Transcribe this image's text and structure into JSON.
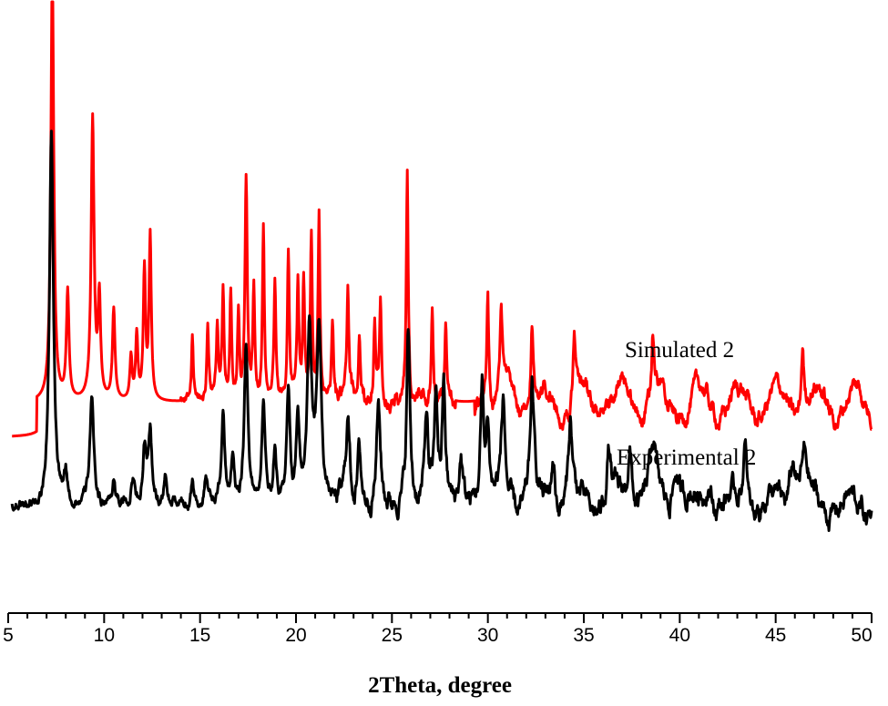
{
  "chart_data": {
    "type": "line",
    "title": "",
    "xlabel": "2Theta, degree",
    "ylabel": "",
    "xlim": [
      5,
      50
    ],
    "xticks": [
      "5",
      "10",
      "15",
      "20",
      "25",
      "30",
      "35",
      "40",
      "45",
      "50"
    ],
    "grid": false,
    "legend": "none",
    "series": [
      {
        "name": "Simulated 2",
        "color": "#ff0000",
        "baseline": 8,
        "peaks": [
          [
            7.3,
            100,
            0.09
          ],
          [
            8.1,
            25,
            0.08
          ],
          [
            9.4,
            65,
            0.09
          ],
          [
            9.75,
            23,
            0.08
          ],
          [
            10.5,
            21,
            0.08
          ],
          [
            11.4,
            10,
            0.07
          ],
          [
            11.7,
            15,
            0.07
          ],
          [
            12.1,
            30,
            0.07
          ],
          [
            12.4,
            38,
            0.07
          ],
          [
            14.6,
            14,
            0.05
          ],
          [
            15.4,
            19,
            0.06
          ],
          [
            15.9,
            18,
            0.06
          ],
          [
            16.2,
            24,
            0.06
          ],
          [
            16.6,
            26,
            0.06
          ],
          [
            17.0,
            22,
            0.06
          ],
          [
            17.4,
            52,
            0.07
          ],
          [
            17.8,
            25,
            0.06
          ],
          [
            18.3,
            40,
            0.06
          ],
          [
            18.9,
            26,
            0.06
          ],
          [
            19.6,
            35,
            0.06
          ],
          [
            20.1,
            26,
            0.06
          ],
          [
            20.4,
            28,
            0.06
          ],
          [
            20.8,
            38,
            0.06
          ],
          [
            21.2,
            42,
            0.06
          ],
          [
            21.9,
            18,
            0.06
          ],
          [
            22.7,
            24,
            0.06
          ],
          [
            23.3,
            16,
            0.06
          ],
          [
            24.1,
            20,
            0.06
          ],
          [
            24.4,
            23,
            0.06
          ],
          [
            25.8,
            55,
            0.06
          ],
          [
            27.1,
            22,
            0.06
          ],
          [
            27.8,
            21,
            0.06
          ],
          [
            30.0,
            24,
            0.07
          ],
          [
            30.7,
            18,
            0.07
          ],
          [
            32.3,
            19,
            0.07
          ],
          [
            34.5,
            15,
            0.07
          ],
          [
            38.6,
            16,
            0.08
          ],
          [
            46.4,
            15,
            0.08
          ]
        ]
      },
      {
        "name": "Experimental 2",
        "color": "#000000",
        "baseline": 5,
        "peaks": [
          [
            7.25,
            71,
            0.12
          ],
          [
            8.0,
            5,
            0.1
          ],
          [
            9.35,
            20,
            0.12
          ],
          [
            10.5,
            5,
            0.1
          ],
          [
            11.5,
            5,
            0.1
          ],
          [
            12.1,
            11,
            0.1
          ],
          [
            12.4,
            14,
            0.1
          ],
          [
            13.2,
            5,
            0.1
          ],
          [
            14.6,
            5,
            0.09
          ],
          [
            15.3,
            5,
            0.09
          ],
          [
            16.2,
            17,
            0.1
          ],
          [
            16.7,
            9,
            0.1
          ],
          [
            17.4,
            30,
            0.12
          ],
          [
            18.3,
            20,
            0.1
          ],
          [
            18.9,
            11,
            0.1
          ],
          [
            19.6,
            20,
            0.1
          ],
          [
            20.1,
            16,
            0.1
          ],
          [
            20.7,
            33,
            0.14
          ],
          [
            21.2,
            33,
            0.14
          ],
          [
            22.7,
            16,
            0.12
          ],
          [
            23.3,
            10,
            0.1
          ],
          [
            24.3,
            19,
            0.12
          ],
          [
            25.85,
            33,
            0.1
          ],
          [
            26.8,
            17,
            0.1
          ],
          [
            27.3,
            20,
            0.1
          ],
          [
            27.7,
            22,
            0.1
          ],
          [
            28.6,
            9,
            0.1
          ],
          [
            29.7,
            21,
            0.1
          ],
          [
            30.0,
            15,
            0.1
          ],
          [
            30.8,
            18,
            0.12
          ],
          [
            32.3,
            21,
            0.12
          ],
          [
            33.4,
            10,
            0.12
          ],
          [
            34.3,
            15,
            0.12
          ],
          [
            36.3,
            10,
            0.12
          ],
          [
            37.4,
            11,
            0.15
          ],
          [
            38.6,
            10,
            0.2
          ],
          [
            39.8,
            8,
            0.2
          ],
          [
            41.5,
            6,
            0.2
          ],
          [
            43.4,
            12,
            0.12
          ],
          [
            45.9,
            9,
            0.2
          ],
          [
            46.5,
            8,
            0.2
          ]
        ]
      }
    ]
  }
}
